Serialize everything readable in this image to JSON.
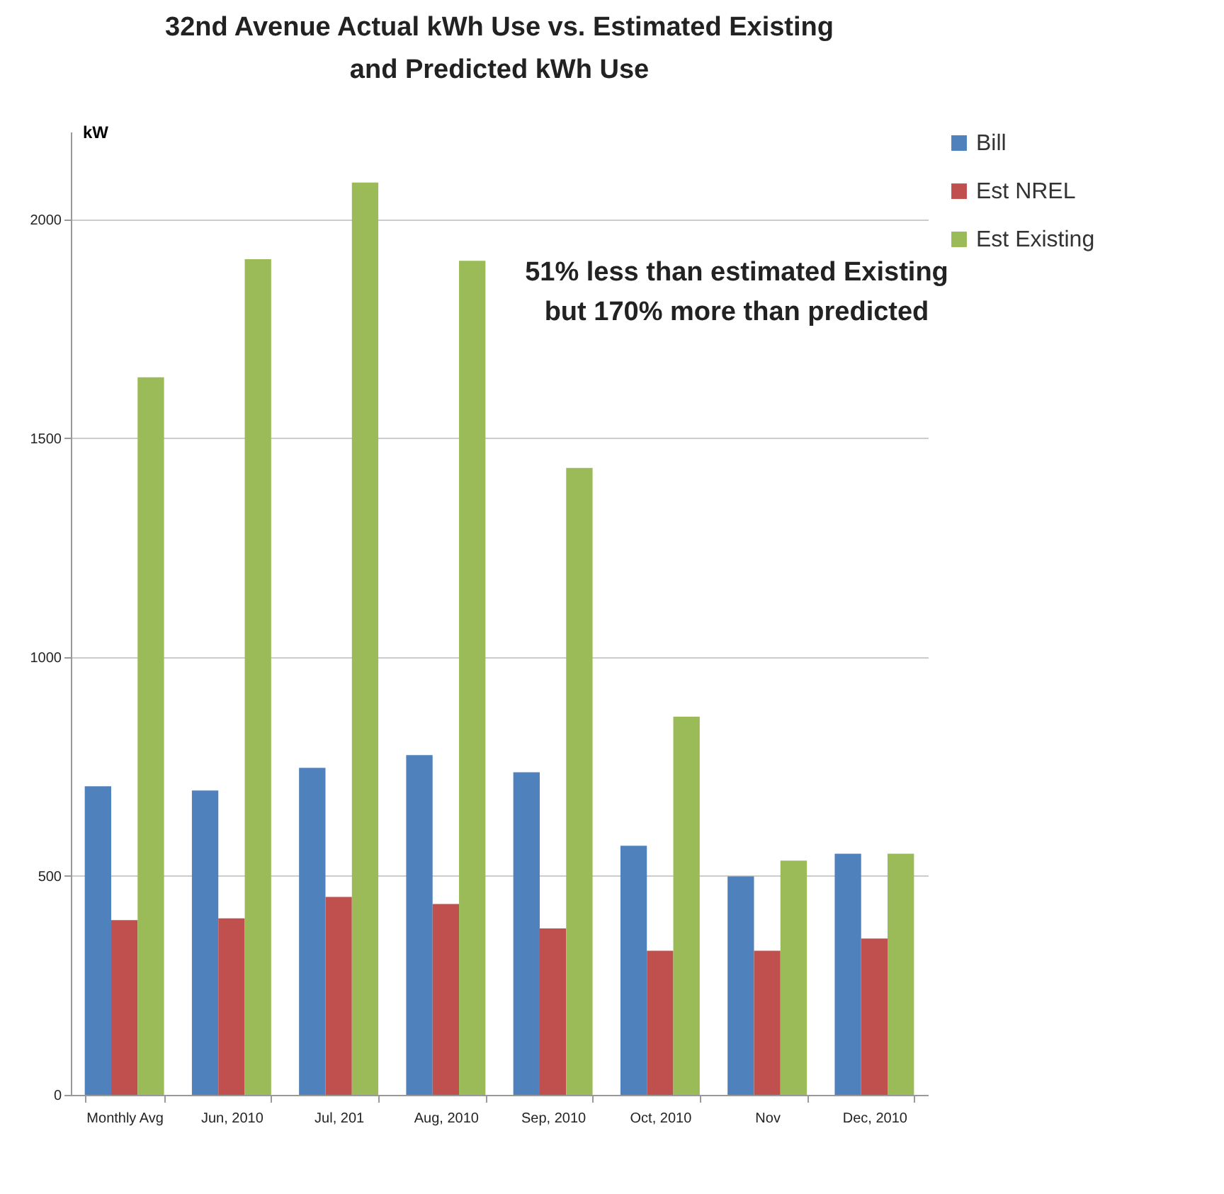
{
  "chart_data": {
    "type": "bar",
    "title": "32nd Avenue Actual kWh Use vs. Estimated Existing\nand Predicted kWh Use",
    "ylabel": "kW",
    "categories": [
      "Monthly Avg",
      "Jun, 2010",
      "Jul, 201",
      "Aug, 2010",
      "Sep, 2010",
      "Oct, 2010",
      "Nov",
      "Dec, 2010"
    ],
    "series": [
      {
        "name": "Bill",
        "color": "#4f81bd",
        "values": [
          705,
          695,
          747,
          776,
          737,
          569,
          499,
          551
        ]
      },
      {
        "name": "Est NREL",
        "color": "#c0504d",
        "values": [
          399,
          403,
          452,
          436,
          380,
          329,
          329,
          357
        ]
      },
      {
        "name": "Est Existing",
        "color": "#9bbb59",
        "values": [
          1639,
          1909,
          2084,
          1905,
          1432,
          864,
          535,
          551
        ]
      }
    ],
    "ylim": [
      0,
      2200
    ],
    "yticks": [
      0,
      500,
      1000,
      1500,
      2000
    ],
    "grid": "y",
    "legend": "right",
    "annotations": [
      "51% less than estimated Existing\nbut 170% more than predicted"
    ]
  }
}
